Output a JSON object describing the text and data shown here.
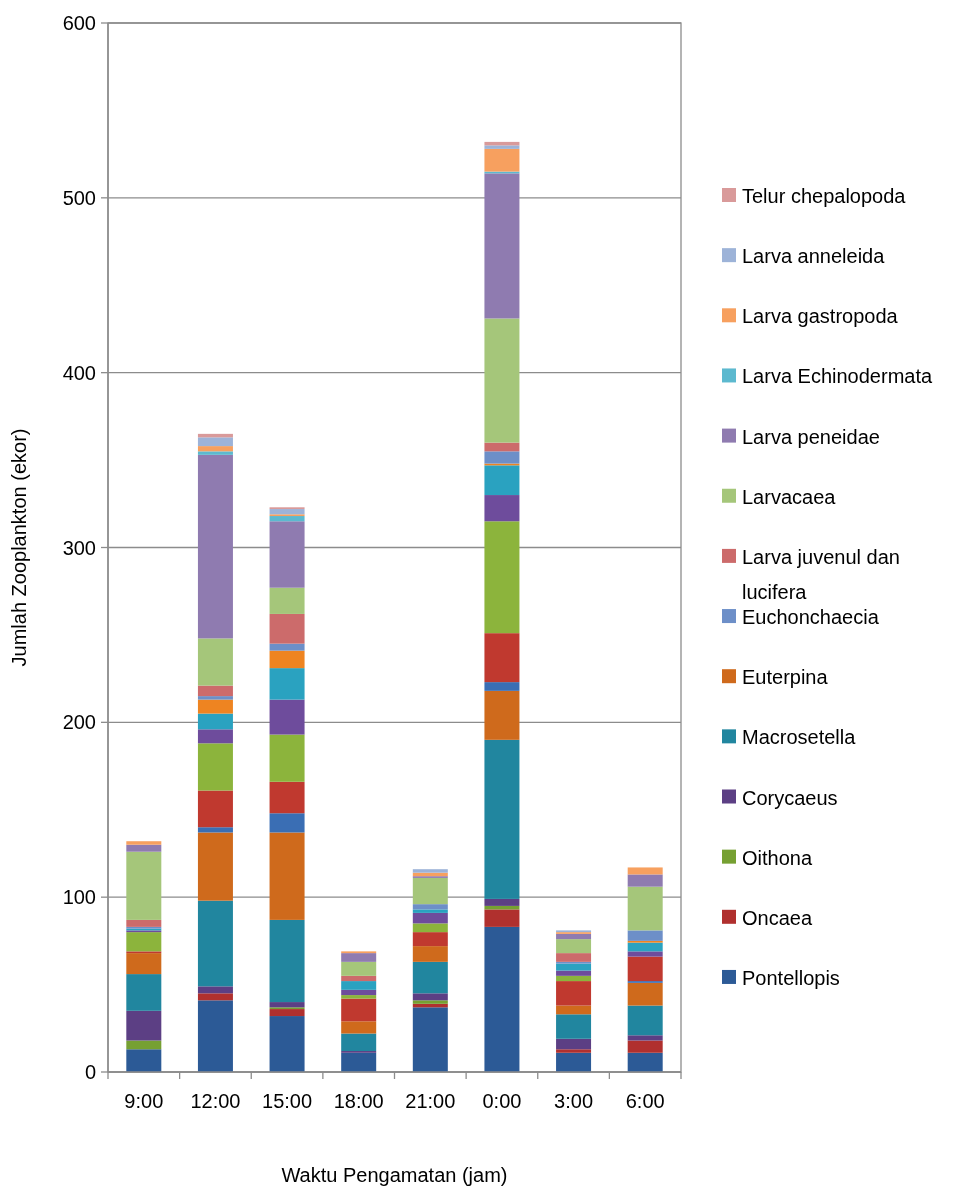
{
  "chart_data": {
    "type": "bar",
    "stacked": true,
    "xlabel": "Waktu Pengamatan (jam)",
    "ylabel": "Jumlah Zooplankton (ekor)",
    "categories": [
      "9:00",
      "12:00",
      "15:00",
      "18:00",
      "21:00",
      "0:00",
      "3:00",
      "6:00"
    ],
    "ylim": [
      0,
      600
    ],
    "yticks": [
      0,
      100,
      200,
      300,
      400,
      500,
      600
    ],
    "grid": "y",
    "legend": "right",
    "series": [
      {
        "name": "Pontellopis",
        "color": "#2c5a96",
        "values": [
          13,
          41,
          32,
          11,
          37,
          83,
          11,
          11
        ]
      },
      {
        "name": "Oncaea",
        "color": "#b0302e",
        "values": [
          0,
          4,
          4,
          0,
          2,
          10,
          2,
          7
        ]
      },
      {
        "name": "Oithona",
        "color": "#76a032",
        "values": [
          5,
          0,
          1,
          0,
          2,
          2,
          0,
          0
        ]
      },
      {
        "name": "Corycaeus",
        "color": "#5c3f84",
        "values": [
          17,
          4,
          3,
          1,
          4,
          4,
          6,
          3
        ]
      },
      {
        "name": "Macrosetella",
        "color": "#21869f",
        "values": [
          21,
          49,
          47,
          10,
          18,
          91,
          14,
          17
        ]
      },
      {
        "name": "Euterpina",
        "color": "#cf6a1c",
        "values": [
          12,
          39,
          50,
          7,
          9,
          28,
          5,
          13
        ]
      },
      {
        "color": "#3a6eb4",
        "values": [
          0,
          3,
          11,
          0,
          0,
          5,
          0,
          1
        ]
      },
      {
        "color": "#c0392f",
        "values": [
          1,
          21,
          18,
          13,
          8,
          28,
          14,
          14
        ]
      },
      {
        "color": "#8cb43c",
        "values": [
          11,
          27,
          27,
          2,
          5,
          64,
          3,
          0
        ]
      },
      {
        "color": "#6e4c9c",
        "values": [
          1,
          8,
          20,
          3,
          6,
          15,
          3,
          3
        ]
      },
      {
        "color": "#2aa2c0",
        "values": [
          1,
          9,
          18,
          5,
          2,
          17,
          4,
          5
        ]
      },
      {
        "color": "#ee8421",
        "values": [
          0,
          8,
          10,
          0,
          0,
          1,
          0,
          1
        ]
      },
      {
        "name": "Euchonchaecia",
        "color": "#6d8fc8",
        "values": [
          1,
          2,
          4,
          0,
          3,
          7,
          1,
          6
        ]
      },
      {
        "name": "Larva juvenul dan lucifera",
        "color": "#cc6b6b",
        "values": [
          4,
          6,
          17,
          3,
          0,
          5,
          5,
          0
        ]
      },
      {
        "name": "Larvacaea",
        "color": "#a5c67a",
        "values": [
          39,
          27,
          15,
          8,
          15,
          71,
          8,
          25
        ]
      },
      {
        "name": "Larva peneidae",
        "color": "#8f7bb0",
        "values": [
          4,
          105,
          38,
          5,
          1,
          83,
          3,
          7
        ]
      },
      {
        "name": "Larva Echinodermata",
        "color": "#5cb9cf",
        "values": [
          0,
          2,
          3,
          0,
          0,
          1,
          0,
          0
        ]
      },
      {
        "name": "Larva gastropoda",
        "color": "#f7a05f",
        "values": [
          2,
          3,
          1,
          1,
          2,
          13,
          1,
          4
        ]
      },
      {
        "name": "Larva anneleida",
        "color": "#9db3d8",
        "values": [
          0,
          5,
          3,
          0,
          2,
          2,
          1,
          0
        ]
      },
      {
        "name": "Telur chepalopoda",
        "color": "#d99a9a",
        "values": [
          0,
          2,
          1,
          0,
          0,
          2,
          0,
          0
        ]
      }
    ]
  }
}
